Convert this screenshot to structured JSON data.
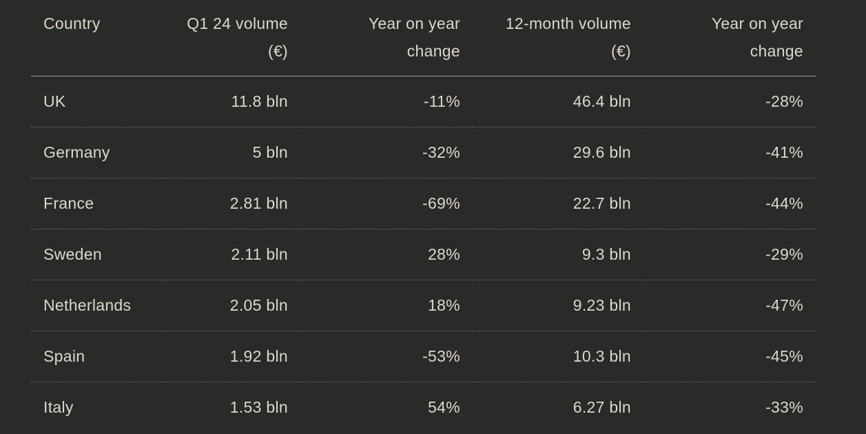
{
  "colors": {
    "background": "#2a2a28",
    "text": "#dcd7ce",
    "header_rule": "#9b9b94",
    "row_divider": "#6f6f68"
  },
  "table": {
    "headers": [
      {
        "line1": "Country",
        "line2": ""
      },
      {
        "line1": "Q1 24 volume",
        "line2": "(€)"
      },
      {
        "line1": "Year on year",
        "line2": "change"
      },
      {
        "line1": "12-month volume",
        "line2": "(€)"
      },
      {
        "line1": "Year on year",
        "line2": "change"
      }
    ]
  },
  "chart_data": {
    "type": "table",
    "columns": [
      "Country",
      "Q1 24 volume (€)",
      "Year on year change",
      "12-month volume (€)",
      "Year on year change"
    ],
    "rows": [
      [
        "UK",
        "11.8 bln",
        "-11%",
        "46.4 bln",
        "-28%"
      ],
      [
        "Germany",
        "5 bln",
        "-32%",
        "29.6 bln",
        "-41%"
      ],
      [
        "France",
        "2.81 bln",
        "-69%",
        "22.7 bln",
        "-44%"
      ],
      [
        "Sweden",
        "2.11 bln",
        "28%",
        "9.3 bln",
        "-29%"
      ],
      [
        "Netherlands",
        "2.05 bln",
        "18%",
        "9.23 bln",
        "-47%"
      ],
      [
        "Spain",
        "1.92 bln",
        "-53%",
        "10.3 bln",
        "-45%"
      ],
      [
        "Italy",
        "1.53 bln",
        "54%",
        "6.27 bln",
        "-33%"
      ]
    ],
    "numeric": {
      "q1_24_volume_eur_bln": [
        11.8,
        5,
        2.81,
        2.11,
        2.05,
        1.92,
        1.53
      ],
      "q1_yoy_change_pct": [
        -11,
        -32,
        -69,
        28,
        18,
        -53,
        54
      ],
      "twelve_month_volume_eur_bln": [
        46.4,
        29.6,
        22.7,
        9.3,
        9.23,
        10.3,
        6.27
      ],
      "twelve_month_yoy_change_pct": [
        -28,
        -41,
        -44,
        -29,
        -47,
        -45,
        -33
      ]
    },
    "title": "",
    "legend": "none",
    "grid": "horizontal dividers only"
  }
}
